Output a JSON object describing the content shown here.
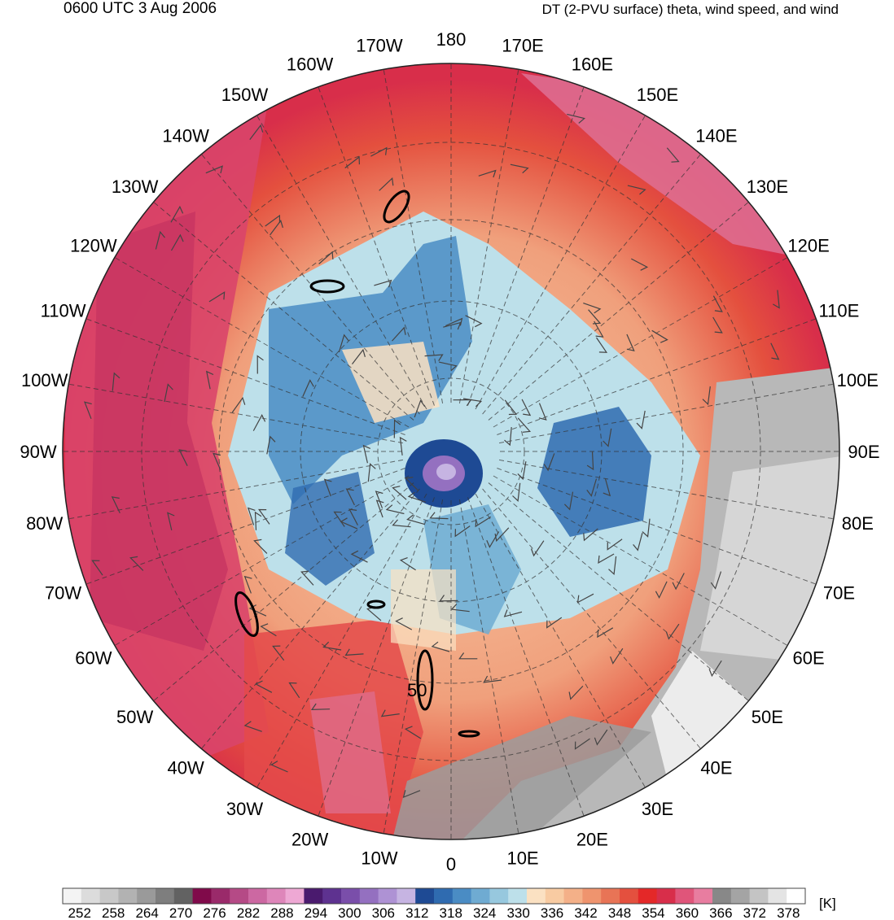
{
  "header": {
    "datetime": "0600 UTC 3 Aug 2006",
    "product": "DT (2-PVU surface) theta, wind speed, and wind"
  },
  "map": {
    "projection": "north-polar-stereographic",
    "center_longitude_bottom": "0",
    "longitude_labels": [
      {
        "text": "180",
        "lon": 180
      },
      {
        "text": "170E",
        "lon": 170
      },
      {
        "text": "160E",
        "lon": 160
      },
      {
        "text": "150E",
        "lon": 150
      },
      {
        "text": "140E",
        "lon": 140
      },
      {
        "text": "130E",
        "lon": 130
      },
      {
        "text": "120E",
        "lon": 120
      },
      {
        "text": "110E",
        "lon": 110
      },
      {
        "text": "100E",
        "lon": 100
      },
      {
        "text": "90E",
        "lon": 90
      },
      {
        "text": "80E",
        "lon": 80
      },
      {
        "text": "70E",
        "lon": 70
      },
      {
        "text": "60E",
        "lon": 60
      },
      {
        "text": "50E",
        "lon": 50
      },
      {
        "text": "40E",
        "lon": 40
      },
      {
        "text": "30E",
        "lon": 30
      },
      {
        "text": "20E",
        "lon": 20
      },
      {
        "text": "10E",
        "lon": 10
      },
      {
        "text": "0",
        "lon": 0
      },
      {
        "text": "10W",
        "lon": -10
      },
      {
        "text": "20W",
        "lon": -20
      },
      {
        "text": "30W",
        "lon": -30
      },
      {
        "text": "40W",
        "lon": -40
      },
      {
        "text": "50W",
        "lon": -50
      },
      {
        "text": "60W",
        "lon": -60
      },
      {
        "text": "70W",
        "lon": -70
      },
      {
        "text": "80W",
        "lon": -80
      },
      {
        "text": "90W",
        "lon": -90
      },
      {
        "text": "100W",
        "lon": -100
      },
      {
        "text": "110W",
        "lon": -110
      },
      {
        "text": "120W",
        "lon": -120
      },
      {
        "text": "130W",
        "lon": -130
      },
      {
        "text": "140W",
        "lon": -140
      },
      {
        "text": "150W",
        "lon": -150
      },
      {
        "text": "160W",
        "lon": -160
      },
      {
        "text": "170W",
        "lon": -170
      }
    ],
    "contour_label": "50"
  },
  "colorbar": {
    "unit": "[K]",
    "tick_labels": [
      "252",
      "258",
      "264",
      "270",
      "276",
      "282",
      "288",
      "294",
      "300",
      "306",
      "312",
      "318",
      "324",
      "330",
      "336",
      "342",
      "348",
      "354",
      "360",
      "366",
      "372",
      "378"
    ],
    "colors": [
      "#f4f4f4",
      "#dcdcdc",
      "#c8c8c8",
      "#b2b2b2",
      "#9a9a9a",
      "#7e7e7e",
      "#626262",
      "#800a4a",
      "#9a2a6a",
      "#b54a86",
      "#cc68a2",
      "#de86ba",
      "#eea8d4",
      "#4a1a6e",
      "#5e3290",
      "#7a4eaa",
      "#9470c0",
      "#ae92d4",
      "#c6b4e2",
      "#1e4a94",
      "#2f6bb0",
      "#4a8cc4",
      "#6fabd2",
      "#97c8de",
      "#bde0ea",
      "#fbe1c2",
      "#f8cba2",
      "#f4b088",
      "#ef946e",
      "#e87456",
      "#e4503e",
      "#e42828",
      "#d82e4a",
      "#e0557a",
      "#e87da0",
      "#888888",
      "#a4a4a4",
      "#c4c4c4",
      "#e4e4e4",
      "#ffffff"
    ]
  }
}
